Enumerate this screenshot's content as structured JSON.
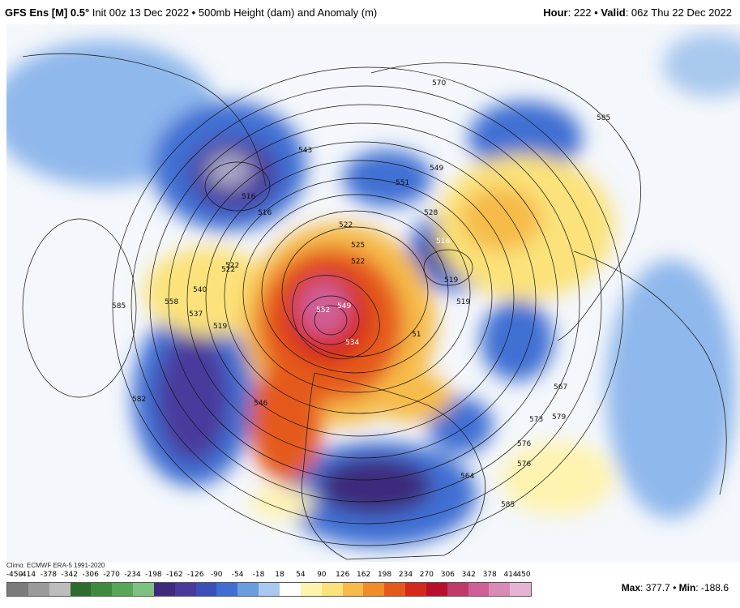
{
  "header": {
    "model": "GFS Ens [M] 0.5°",
    "init": "Init 00z 13 Dec 2022",
    "bullet": "•",
    "product": "500mb Height (dam) and Anomaly (m)",
    "hour_label": "Hour",
    "hour_value": ": 222",
    "valid_label": "Valid",
    "valid_value": ": 06z Thu 22 Dec 2022"
  },
  "climo": "Climo: ECMWF ERA-5 1991-2020",
  "colorbar": {
    "ticks": [
      "-450",
      "-414",
      "-378",
      "-342",
      "-306",
      "-270",
      "-234",
      "-198",
      "-162",
      "-126",
      "-90",
      "-54",
      "-18",
      "18",
      "54",
      "90",
      "126",
      "162",
      "198",
      "234",
      "270",
      "306",
      "342",
      "378",
      "414",
      "450"
    ],
    "colors": [
      "#7b7b7b",
      "#9a9a9a",
      "#bdbdbd",
      "#2e6b2e",
      "#3f8a3f",
      "#58a658",
      "#7fc27f",
      "#3e2a7a",
      "#4a3a9c",
      "#3a4fb8",
      "#3f6fd3",
      "#6a9de0",
      "#a9c8ee",
      "#ffffff",
      "#fff3b0",
      "#fbe27a",
      "#f6bb4a",
      "#f08c2a",
      "#e55a1c",
      "#d42a1a",
      "#b8102a",
      "#c03a6a",
      "#cf5f96",
      "#d98ab6",
      "#e6b3d2"
    ]
  },
  "max_label": "Max",
  "max_value": ": 377.7",
  "min_label": "Min",
  "min_value": ": -188.6",
  "contour_labels": [
    "585",
    "543",
    "570",
    "585",
    "549",
    "551",
    "528",
    "516",
    "522",
    "516",
    "519",
    "525",
    "522",
    "558",
    "537",
    "540",
    "519",
    "576",
    "546",
    "552",
    "549",
    "534",
    "51",
    "582",
    "567",
    "573",
    "579",
    "576",
    "585",
    "564",
    "516",
    "522",
    "519",
    "522"
  ]
}
